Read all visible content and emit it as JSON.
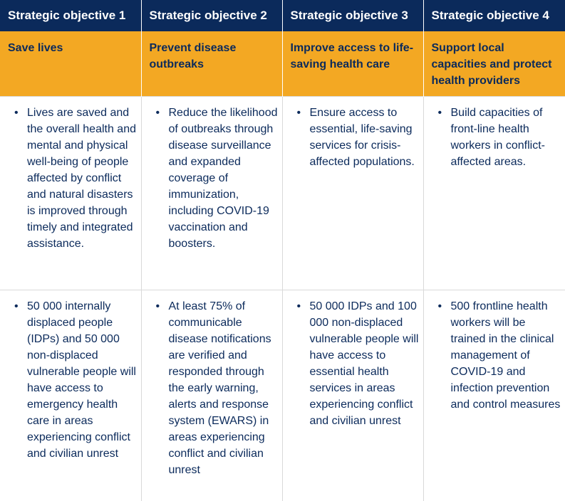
{
  "colors": {
    "header_bg": "#0b2a5b",
    "subheader_bg": "#f3a823",
    "text": "#0b2a5b",
    "border": "#d9d9d9"
  },
  "bullet_char": "•",
  "columns": [
    {
      "heading": "Strategic objective 1",
      "subtitle": "Save lives",
      "description": "Lives are saved and the overall health and mental and physical well-being of people affected by conflict and natural disasters is improved through timely and integrated assistance.",
      "target": "50 000 internally displaced people (IDPs) and 50 000 non-displaced vulnerable people will have access to emergency health care in areas experiencing conflict and civilian unrest"
    },
    {
      "heading": "Strategic objective 2",
      "subtitle": "Prevent disease outbreaks",
      "description": "Reduce the likelihood of outbreaks through disease surveillance and expanded coverage of immunization, including COVID-19 vaccination and boosters.",
      "target": "At least 75% of communicable disease notifications are verified and responded through the early warning, alerts and response system (EWARS) in areas experiencing conflict and civilian unrest"
    },
    {
      "heading": "Strategic objective 3",
      "subtitle": "Improve access to life-saving health care",
      "description": "Ensure access to essential, life-saving services for crisis-affected populations.",
      "target": "50 000 IDPs and 100 000 non-displaced vulnerable people will have access to essential health services in areas experiencing conflict and civilian unrest"
    },
    {
      "heading": "Strategic objective 4",
      "subtitle": "Support local capacities and protect health providers",
      "description": "Build capacities of front-line health workers in conflict-affected areas.",
      "target": "500 frontline health workers will be trained in the clinical management of COVID-19 and infection prevention and control measures"
    }
  ]
}
